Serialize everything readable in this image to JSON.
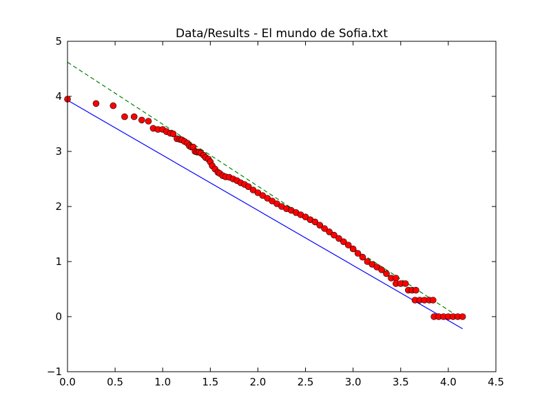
{
  "chart_data": {
    "type": "scatter",
    "title": "Data/Results - El mundo de Sofia.txt",
    "x": [
      0,
      0.3,
      0.48,
      0.6,
      0.7,
      0.78,
      0.85,
      0.9,
      0.95,
      1.0,
      1.04,
      1.08,
      1.11,
      1.15,
      1.18,
      1.2,
      1.23,
      1.26,
      1.28,
      1.3,
      1.32,
      1.34,
      1.36,
      1.38,
      1.4,
      1.43,
      1.45,
      1.48,
      1.5,
      1.52,
      1.55,
      1.58,
      1.6,
      1.63,
      1.66,
      1.7,
      1.74,
      1.78,
      1.82,
      1.86,
      1.9,
      1.95,
      2.0,
      2.05,
      2.1,
      2.15,
      2.2,
      2.25,
      2.3,
      2.35,
      2.4,
      2.45,
      2.5,
      2.55,
      2.6,
      2.65,
      2.7,
      2.75,
      2.8,
      2.85,
      2.9,
      2.95,
      3.0,
      3.05,
      3.1,
      3.15,
      3.2,
      3.25,
      3.3,
      3.35,
      3.4,
      3.45,
      3.45,
      3.5,
      3.55,
      3.58,
      3.62,
      3.66,
      3.65,
      3.7,
      3.75,
      3.8,
      3.84,
      3.85,
      3.9,
      3.95,
      4.0,
      4.05,
      4.1,
      4.15
    ],
    "y": [
      3.95,
      3.87,
      3.83,
      3.63,
      3.63,
      3.57,
      3.55,
      3.42,
      3.4,
      3.4,
      3.36,
      3.33,
      3.32,
      3.23,
      3.22,
      3.21,
      3.18,
      3.15,
      3.1,
      3.08,
      3.08,
      3.0,
      2.99,
      2.99,
      2.97,
      2.93,
      2.89,
      2.86,
      2.81,
      2.74,
      2.68,
      2.62,
      2.6,
      2.56,
      2.54,
      2.53,
      2.5,
      2.47,
      2.43,
      2.4,
      2.36,
      2.3,
      2.25,
      2.2,
      2.15,
      2.1,
      2.05,
      2.0,
      1.96,
      1.93,
      1.89,
      1.85,
      1.81,
      1.76,
      1.72,
      1.66,
      1.6,
      1.54,
      1.48,
      1.42,
      1.36,
      1.3,
      1.23,
      1.15,
      1.08,
      1.0,
      0.95,
      0.9,
      0.85,
      0.78,
      0.7,
      0.7,
      0.6,
      0.6,
      0.6,
      0.48,
      0.48,
      0.48,
      0.3,
      0.3,
      0.3,
      0.3,
      0.3,
      0,
      0,
      0,
      0,
      0,
      0,
      0
    ],
    "color": "#ff0000",
    "lines": [
      {
        "color": "#0000ff",
        "style": "solid",
        "x": [
          0,
          4.15
        ],
        "y": [
          3.93,
          -0.22
        ]
      },
      {
        "color": "#008000",
        "style": "dashed",
        "x": [
          0,
          4.15
        ],
        "y": [
          4.62,
          -0.05
        ]
      }
    ],
    "xlim": [
      0,
      4.5
    ],
    "ylim": [
      -1,
      5
    ],
    "xticks": [
      {
        "value": 0,
        "label": "0.0"
      },
      {
        "value": 0.5,
        "label": "0.5"
      },
      {
        "value": 1,
        "label": "1.0"
      },
      {
        "value": 1.5,
        "label": "1.5"
      },
      {
        "value": 2,
        "label": "2.0"
      },
      {
        "value": 2.5,
        "label": "2.5"
      },
      {
        "value": 3,
        "label": "3.0"
      },
      {
        "value": 3.5,
        "label": "3.5"
      },
      {
        "value": 4,
        "label": "4.0"
      },
      {
        "value": 4.5,
        "label": "4.5"
      }
    ],
    "yticks": [
      {
        "value": -1,
        "label": "−1"
      },
      0,
      1,
      2,
      3,
      4,
      5
    ]
  }
}
